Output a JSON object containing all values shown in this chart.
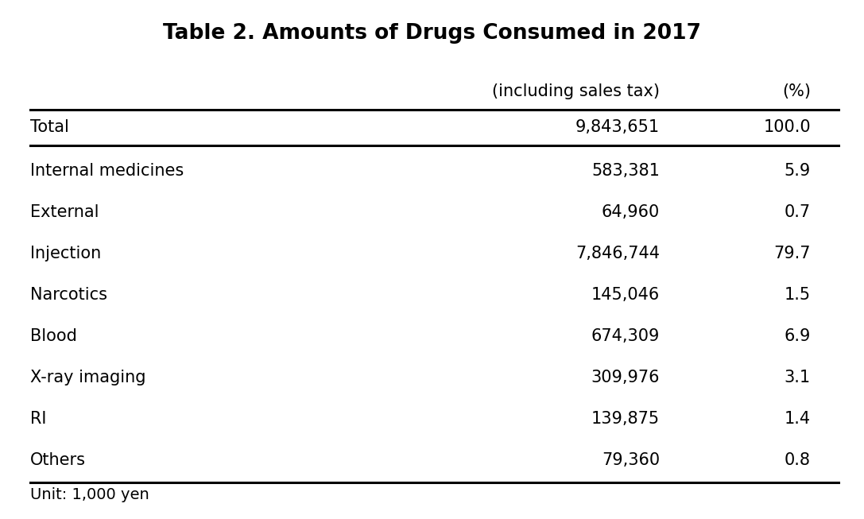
{
  "title": "Table 2. Amounts of Drugs Consumed in 2017",
  "col_headers": [
    "",
    "(including sales tax)",
    "(%)"
  ],
  "rows": [
    [
      "Total",
      "9,843,651",
      "100.0"
    ],
    [
      "Internal medicines",
      "583,381",
      "5.9"
    ],
    [
      "External",
      "64,960",
      "0.7"
    ],
    [
      "Injection",
      "7,846,744",
      "79.7"
    ],
    [
      "Narcotics",
      "145,046",
      "1.5"
    ],
    [
      "Blood",
      "674,309",
      "6.9"
    ],
    [
      "X-ray imaging",
      "309,976",
      "3.1"
    ],
    [
      "RI",
      "139,875",
      "1.4"
    ],
    [
      "Others",
      "79,360",
      "0.8"
    ]
  ],
  "footer": "Unit: 1,000 yen",
  "title_fontsize": 19,
  "header_fontsize": 15,
  "body_fontsize": 15,
  "footer_fontsize": 14,
  "bg_color": "#ffffff",
  "text_color": "#000000"
}
